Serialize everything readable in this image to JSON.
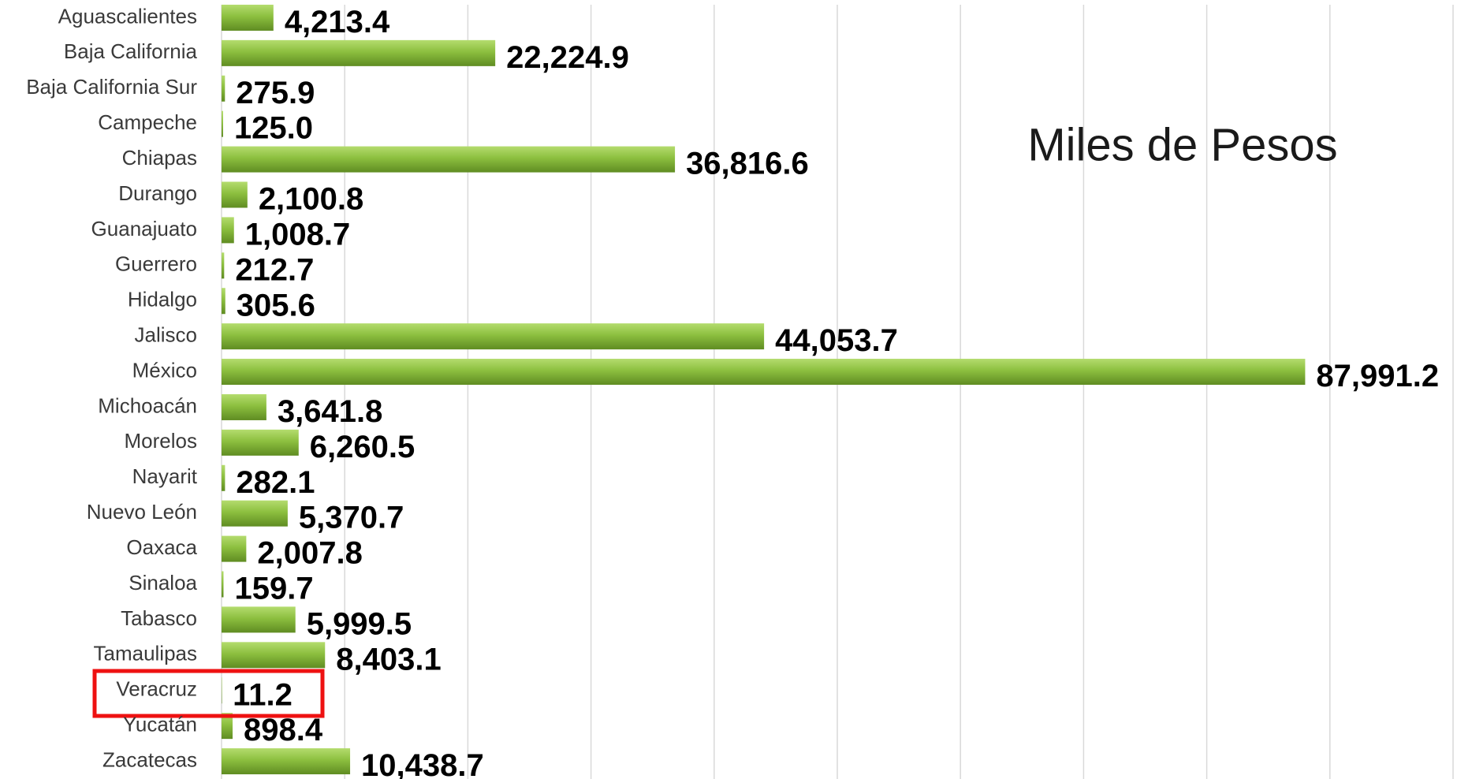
{
  "chart_data": {
    "type": "barh",
    "title": "Miles de Pesos",
    "categories": [
      "Aguascalientes",
      "Baja California",
      "Baja California Sur",
      "Campeche",
      "Chiapas",
      "Durango",
      "Guanajuato",
      "Guerrero",
      "Hidalgo",
      "Jalisco",
      "México",
      "Michoacán",
      "Morelos",
      "Nayarit",
      "Nuevo León",
      "Oaxaca",
      "Sinaloa",
      "Tabasco",
      "Tamaulipas",
      "Veracruz",
      "Yucatán",
      "Zacatecas"
    ],
    "values": [
      4213.4,
      22224.9,
      275.9,
      125.0,
      36816.6,
      2100.8,
      1008.7,
      212.7,
      305.6,
      44053.7,
      87991.2,
      3641.8,
      6260.5,
      282.1,
      5370.7,
      2007.8,
      159.7,
      5999.5,
      8403.1,
      11.2,
      898.4,
      10438.7
    ],
    "value_labels": [
      "4,213.4",
      "22,224.9",
      "275.9",
      "125.0",
      "36,816.6",
      "2,100.8",
      "1,008.7",
      "212.7",
      "305.6",
      "44,053.7",
      "87,991.2",
      "3,641.8",
      "6,260.5",
      "282.1",
      "5,370.7",
      "2,007.8",
      "159.7",
      "5,999.5",
      "8,403.1",
      "11.2",
      "898.4",
      "10,438.7"
    ],
    "color": "#8cbf3f",
    "xlim": [
      0,
      100000
    ],
    "xticks": [
      0,
      10000,
      20000,
      30000,
      40000,
      50000,
      60000,
      70000,
      80000,
      90000,
      100000
    ],
    "grid": true
  }
}
